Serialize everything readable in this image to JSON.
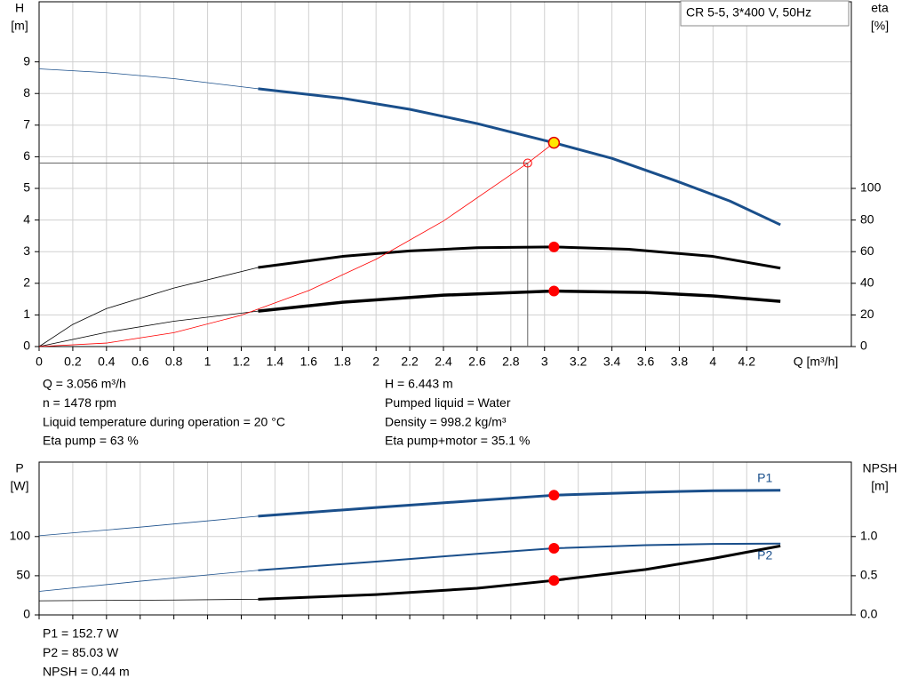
{
  "chart_data": [
    {
      "type": "line",
      "title": "CR 5-5, 3*400 V, 50Hz",
      "y_label": [
        "H",
        "[m]"
      ],
      "y2_label": [
        "eta",
        "[%]"
      ],
      "x_label": "Q [m³/h]",
      "xlim": [
        0,
        4.8
      ],
      "xticks": [
        0,
        0.2,
        0.4,
        0.6,
        0.8,
        1.0,
        1.2,
        1.4,
        1.6,
        1.8,
        2.0,
        2.2,
        2.4,
        2.6,
        2.8,
        3.0,
        3.2,
        3.4,
        3.6,
        3.8,
        4.0,
        4.2
      ],
      "ylim": [
        0,
        10.9
      ],
      "yticks": [
        0,
        1,
        2,
        3,
        4,
        5,
        6,
        7,
        8,
        9
      ],
      "y2lim": [
        0,
        218
      ],
      "y2ticks": [
        0,
        20,
        40,
        60,
        80,
        100
      ],
      "grid": true,
      "operating_range": [
        1.3,
        4.4
      ],
      "duty_x": 3.056,
      "series": [
        {
          "color": "#1a4f8b",
          "marker_color": "#ffe600",
          "x": [
            0,
            0.4,
            0.8,
            1.3,
            1.8,
            2.2,
            2.6,
            3.056,
            3.4,
            3.8,
            4.1,
            4.4
          ],
          "values": [
            8.78,
            8.66,
            8.47,
            8.15,
            7.85,
            7.5,
            7.05,
            6.443,
            5.95,
            5.2,
            4.6,
            3.85
          ]
        },
        {
          "color": "#000000",
          "marker_color": "#ff0000",
          "axis": "y2",
          "x": [
            0,
            0.2,
            0.4,
            0.8,
            1.3,
            1.8,
            2.2,
            2.6,
            3.056,
            3.5,
            4.0,
            4.4
          ],
          "values": [
            0,
            14,
            24,
            37,
            50,
            57,
            60.5,
            62.5,
            63,
            61.5,
            57,
            49.6
          ]
        },
        {
          "color": "#000000",
          "marker_color": "#ff0000",
          "axis": "y2",
          "width": 3.5,
          "x": [
            0,
            0.4,
            0.8,
            1.3,
            1.8,
            2.4,
            3.056,
            3.6,
            4.0,
            4.4
          ],
          "values": [
            0,
            9,
            16,
            22.4,
            28,
            32.5,
            35.1,
            34.2,
            32,
            28.6
          ]
        },
        {
          "color": "#ff0000",
          "thin": true,
          "x": [
            0,
            0.4,
            0.8,
            1.2,
            1.6,
            2.0,
            2.4,
            2.9,
            3.056
          ],
          "values": [
            0,
            0.11,
            0.44,
            0.99,
            1.77,
            2.76,
            3.97,
            5.8,
            6.443
          ]
        }
      ],
      "reference_point": {
        "x": 2.9,
        "y": 5.8
      },
      "readout": [
        "Q = 3.056 m³/h",
        "n = 1478 rpm",
        "Liquid temperature during operation = 20 °C",
        "Eta pump = 63 %",
        "H = 6.443 m",
        "Pumped liquid = Water",
        "Density = 998.2 kg/m³",
        "Eta pump+motor = 35.1 %"
      ]
    },
    {
      "type": "line",
      "y_label": [
        "P",
        "[W]"
      ],
      "y2_label": [
        "NPSH",
        "[m]"
      ],
      "xlim": [
        0,
        4.8
      ],
      "xticks": [
        0,
        0.2,
        0.4,
        0.6,
        0.8,
        1.0,
        1.2,
        1.4,
        1.6,
        1.8,
        2.0,
        2.2,
        2.4,
        2.6,
        2.8,
        3.0,
        3.2,
        3.4,
        3.6,
        3.8,
        4.0,
        4.2
      ],
      "ylim": [
        0,
        195
      ],
      "yticks": [
        0,
        50,
        100
      ],
      "y2lim": [
        0,
        1.95
      ],
      "y2ticks": [
        {
          "value": 0,
          "label": "0.0"
        },
        0.5,
        {
          "value": 1,
          "label": "1.0"
        }
      ],
      "grid": true,
      "operating_range": [
        1.3,
        4.4
      ],
      "duty_x": 3.056,
      "series": [
        {
          "name": "P1",
          "color": "#1a4f8b",
          "marker_color": "#ff0000",
          "x": [
            0,
            0.6,
            1.3,
            2.0,
            2.6,
            3.056,
            3.6,
            4.0,
            4.4
          ],
          "values": [
            101,
            112,
            126,
            137,
            146,
            152.7,
            156.5,
            158.5,
            159
          ]
        },
        {
          "name": "P2",
          "color": "#1a4f8b",
          "marker_color": "#ff0000",
          "width": 2,
          "x": [
            0,
            0.6,
            1.3,
            2.0,
            2.6,
            3.056,
            3.6,
            4.0,
            4.4
          ],
          "values": [
            30,
            43,
            57,
            68,
            78,
            85.03,
            89,
            90.5,
            91
          ]
        },
        {
          "color": "#000000",
          "marker_color": "#ff0000",
          "axis": "y2",
          "x": [
            0,
            0.8,
            1.3,
            2.0,
            2.6,
            3.056,
            3.6,
            4.0,
            4.4
          ],
          "values": [
            0.18,
            0.19,
            0.2,
            0.26,
            0.34,
            0.44,
            0.58,
            0.72,
            0.88
          ]
        }
      ],
      "readout": [
        "P1 = 152.7 W",
        "P2 = 85.03 W",
        "NPSH = 0.44 m"
      ]
    }
  ]
}
